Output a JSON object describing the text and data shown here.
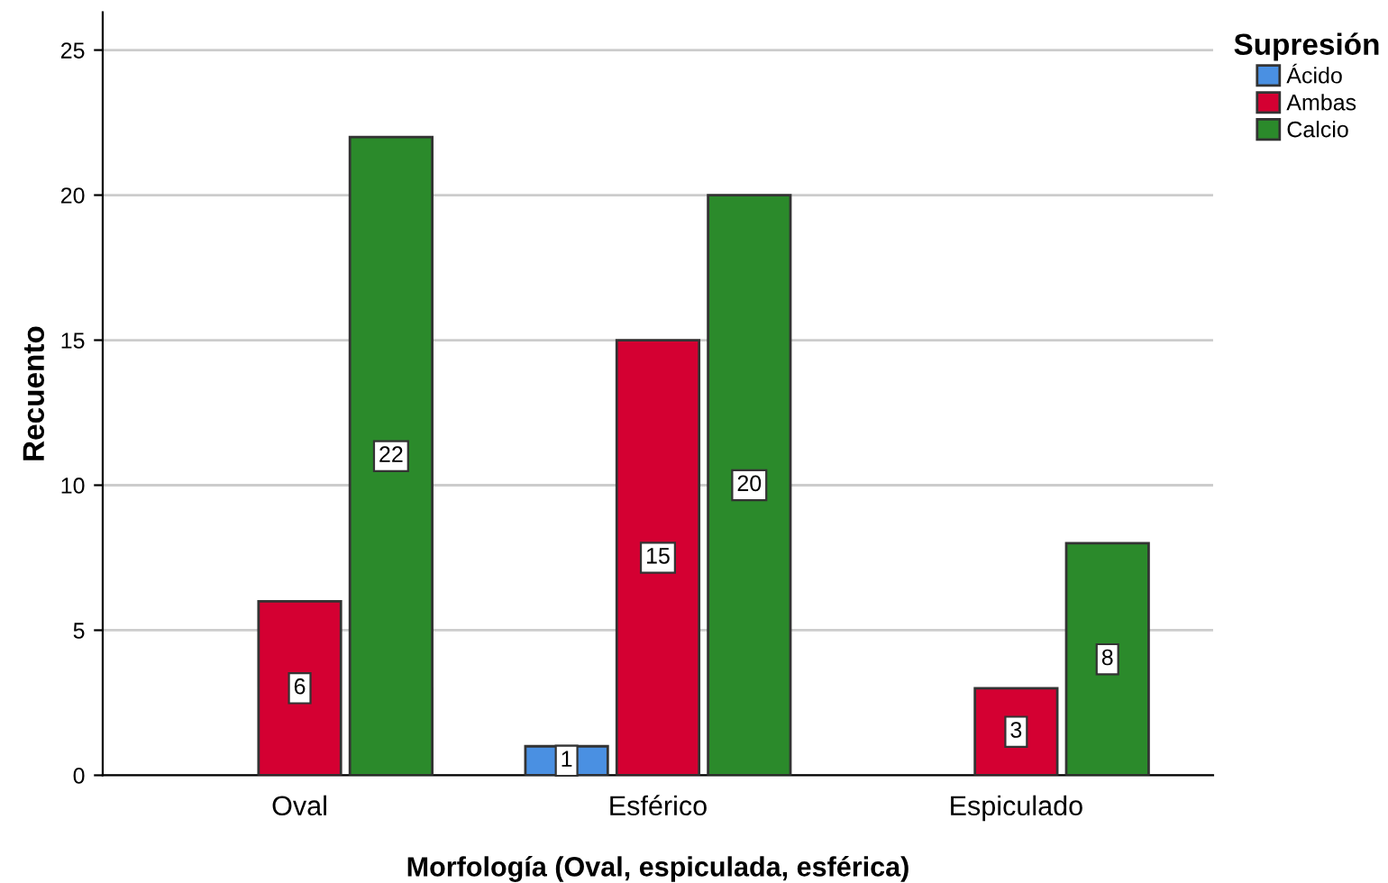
{
  "chart_data": {
    "type": "bar",
    "xlabel": "Morfología (Oval, espiculada, esférica)",
    "ylabel": "Recuento",
    "legend_title": "Supresión",
    "categories": [
      "Oval",
      "Esférico",
      "Espiculado"
    ],
    "series": [
      {
        "name": "Ácido",
        "color": "#4a90e2",
        "values": [
          null,
          1,
          null
        ]
      },
      {
        "name": "Ambas",
        "color": "#d40032",
        "values": [
          6,
          15,
          3
        ]
      },
      {
        "name": "Calcio",
        "color": "#2b8a2b",
        "values": [
          22,
          20,
          8
        ]
      }
    ],
    "ylim": [
      0,
      26.3
    ],
    "yticks": [
      0,
      5,
      10,
      15,
      20,
      25
    ],
    "grid": "y",
    "legend": "top right",
    "data_labels": true
  }
}
